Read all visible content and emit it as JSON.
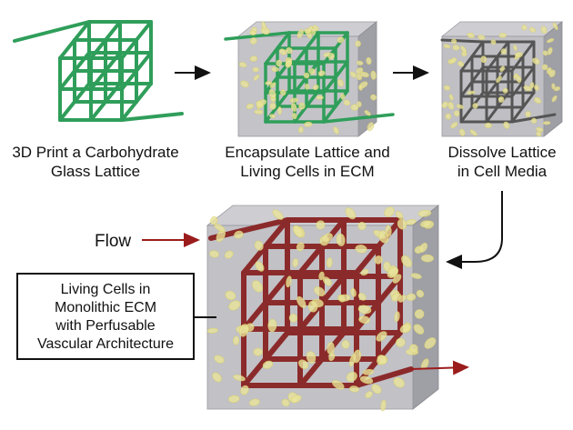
{
  "steps": [
    {
      "line1": "3D Print a Carbohydrate",
      "line2": "Glass Lattice"
    },
    {
      "line1": "Encapsulate Lattice and",
      "line2": "Living Cells in ECM"
    },
    {
      "line1": "Dissolve Lattice",
      "line2": "in Cell Media"
    }
  ],
  "flow_label": "Flow",
  "result_box": {
    "line1": "Living Cells in",
    "line2": "Monolithic ECM",
    "line3": "with Perfusable",
    "line4": "Vascular Architecture"
  },
  "colors": {
    "lattice_green": "#2f9e5a",
    "lattice_gray": "#555555",
    "vessel_red": "#8b2a2a",
    "gel_gray": "#a9a9b0",
    "cell_yellow": "#e9e39a",
    "arrow_black": "#111111",
    "flow_arrow": "#9b1c1c"
  }
}
